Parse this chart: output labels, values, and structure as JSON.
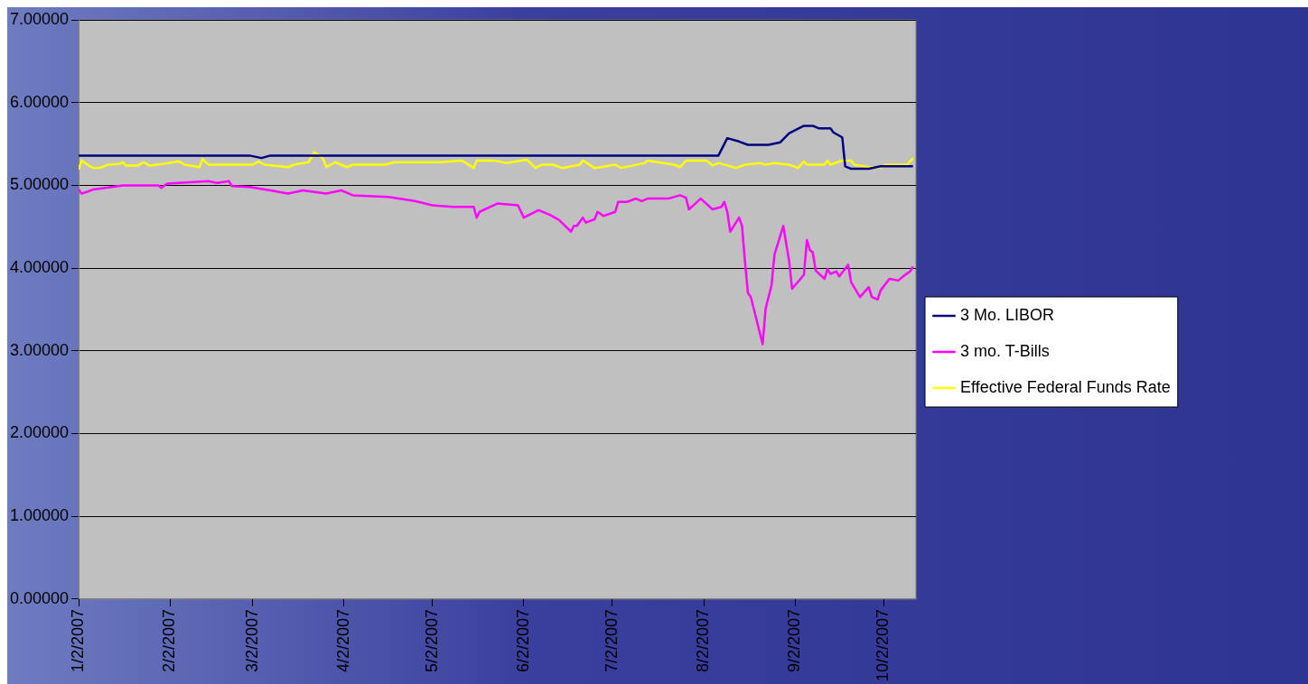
{
  "chart_data": {
    "type": "line",
    "xlim": [
      "2007-01-02",
      "2007-10-13"
    ],
    "xticks": [
      {
        "value": "2007-01-02",
        "label": "1/2/2007"
      },
      {
        "value": "2007-02-02",
        "label": "2/2/2007"
      },
      {
        "value": "2007-03-02",
        "label": "3/2/2007"
      },
      {
        "value": "2007-04-02",
        "label": "4/2/2007"
      },
      {
        "value": "2007-05-02",
        "label": "5/2/2007"
      },
      {
        "value": "2007-06-02",
        "label": "6/2/2007"
      },
      {
        "value": "2007-07-02",
        "label": "7/2/2007"
      },
      {
        "value": "2007-08-02",
        "label": "8/2/2007"
      },
      {
        "value": "2007-09-02",
        "label": "9/2/2007"
      },
      {
        "value": "2007-10-02",
        "label": "10/2/2007"
      }
    ],
    "ylim": [
      0,
      7
    ],
    "yticks": [
      {
        "value": 0,
        "label": "0.00000"
      },
      {
        "value": 1,
        "label": "1.00000"
      },
      {
        "value": 2,
        "label": "2.00000"
      },
      {
        "value": 3,
        "label": "3.00000"
      },
      {
        "value": 4,
        "label": "4.00000"
      },
      {
        "value": 5,
        "label": "5.00000"
      },
      {
        "value": 6,
        "label": "6.00000"
      },
      {
        "value": 7,
        "label": "7.00000"
      }
    ],
    "grid": "y",
    "legend": "right",
    "marker": "none",
    "line_style": "solid",
    "series": [
      {
        "name": "3 Mo. LIBOR",
        "color": "#000080",
        "x": [
          "2007-01-02",
          "2007-03-01",
          "2007-03-05",
          "2007-03-08",
          "2007-08-07",
          "2007-08-10",
          "2007-08-14",
          "2007-08-17",
          "2007-08-24",
          "2007-08-28",
          "2007-08-31",
          "2007-09-05",
          "2007-09-08",
          "2007-09-10",
          "2007-09-14",
          "2007-09-15",
          "2007-09-18",
          "2007-09-19",
          "2007-09-21",
          "2007-09-27",
          "2007-10-01",
          "2007-10-12"
        ],
        "values": [
          5.36,
          5.36,
          5.33,
          5.36,
          5.36,
          5.57,
          5.53,
          5.49,
          5.49,
          5.52,
          5.63,
          5.72,
          5.72,
          5.69,
          5.69,
          5.64,
          5.58,
          5.23,
          5.2,
          5.2,
          5.23,
          5.23
        ]
      },
      {
        "name": "3 mo. T-Bills",
        "color": "#ff00ff",
        "x": [
          "2007-01-02",
          "2007-01-03",
          "2007-01-07",
          "2007-01-11",
          "2007-01-17",
          "2007-01-29",
          "2007-01-30",
          "2007-02-01",
          "2007-02-15",
          "2007-02-18",
          "2007-02-22",
          "2007-02-23",
          "2007-03-01",
          "2007-03-08",
          "2007-03-14",
          "2007-03-19",
          "2007-03-27",
          "2007-04-01",
          "2007-04-05",
          "2007-04-17",
          "2007-04-26",
          "2007-05-02",
          "2007-05-09",
          "2007-05-16",
          "2007-05-17",
          "2007-05-18",
          "2007-05-24",
          "2007-05-31",
          "2007-06-02",
          "2007-06-07",
          "2007-06-11",
          "2007-06-14",
          "2007-06-18",
          "2007-06-19",
          "2007-06-20",
          "2007-06-22",
          "2007-06-23",
          "2007-06-26",
          "2007-06-27",
          "2007-06-29",
          "2007-07-03",
          "2007-07-04",
          "2007-07-07",
          "2007-07-10",
          "2007-07-12",
          "2007-07-14",
          "2007-07-21",
          "2007-07-25",
          "2007-07-27",
          "2007-07-28",
          "2007-08-01",
          "2007-08-05",
          "2007-08-08",
          "2007-08-09",
          "2007-08-10",
          "2007-08-11",
          "2007-08-14",
          "2007-08-15",
          "2007-08-16",
          "2007-08-17",
          "2007-08-18",
          "2007-08-22",
          "2007-08-23",
          "2007-08-25",
          "2007-08-26",
          "2007-08-29",
          "2007-08-31",
          "2007-09-01",
          "2007-09-05",
          "2007-09-06",
          "2007-09-07",
          "2007-09-08",
          "2007-09-09",
          "2007-09-12",
          "2007-09-13",
          "2007-09-14",
          "2007-09-16",
          "2007-09-17",
          "2007-09-20",
          "2007-09-21",
          "2007-09-24",
          "2007-09-27",
          "2007-09-28",
          "2007-09-30",
          "2007-10-01",
          "2007-10-04",
          "2007-10-07",
          "2007-10-09",
          "2007-10-11",
          "2007-10-12"
        ],
        "values": [
          4.95,
          4.9,
          4.95,
          4.97,
          5.0,
          5.0,
          4.97,
          5.02,
          5.05,
          5.03,
          5.05,
          4.99,
          4.98,
          4.94,
          4.9,
          4.94,
          4.9,
          4.94,
          4.88,
          4.86,
          4.81,
          4.76,
          4.74,
          4.74,
          4.61,
          4.68,
          4.78,
          4.76,
          4.61,
          4.7,
          4.64,
          4.58,
          4.44,
          4.51,
          4.51,
          4.61,
          4.55,
          4.59,
          4.68,
          4.63,
          4.68,
          4.8,
          4.8,
          4.84,
          4.81,
          4.84,
          4.84,
          4.88,
          4.85,
          4.71,
          4.84,
          4.71,
          4.74,
          4.8,
          4.68,
          4.44,
          4.61,
          4.51,
          4.08,
          3.7,
          3.65,
          3.08,
          3.51,
          3.79,
          4.16,
          4.51,
          4.08,
          3.75,
          3.92,
          4.34,
          4.22,
          4.19,
          3.97,
          3.87,
          3.99,
          3.93,
          3.96,
          3.9,
          4.04,
          3.83,
          3.65,
          3.77,
          3.65,
          3.62,
          3.73,
          3.87,
          3.85,
          3.91,
          3.96,
          4.02
        ]
      },
      {
        "name": "Effective Federal Funds Rate",
        "color": "#ffff00",
        "x": [
          "2007-01-02",
          "2007-01-03",
          "2007-01-05",
          "2007-01-07",
          "2007-01-09",
          "2007-01-12",
          "2007-01-16",
          "2007-01-17",
          "2007-01-18",
          "2007-01-22",
          "2007-01-24",
          "2007-01-26",
          "2007-01-31",
          "2007-02-05",
          "2007-02-07",
          "2007-02-12",
          "2007-02-13",
          "2007-02-15",
          "2007-03-02",
          "2007-03-04",
          "2007-03-06",
          "2007-03-14",
          "2007-03-16",
          "2007-03-21",
          "2007-03-23",
          "2007-03-26",
          "2007-03-27",
          "2007-03-30",
          "2007-04-03",
          "2007-04-05",
          "2007-04-16",
          "2007-04-19",
          "2007-05-05",
          "2007-05-12",
          "2007-05-16",
          "2007-05-17",
          "2007-05-23",
          "2007-05-27",
          "2007-06-03",
          "2007-06-06",
          "2007-06-08",
          "2007-06-12",
          "2007-06-15",
          "2007-06-21",
          "2007-06-22",
          "2007-06-26",
          "2007-07-03",
          "2007-07-05",
          "2007-07-13",
          "2007-07-14",
          "2007-07-23",
          "2007-07-25",
          "2007-07-27",
          "2007-08-03",
          "2007-08-05",
          "2007-08-07",
          "2007-08-10",
          "2007-08-13",
          "2007-08-16",
          "2007-08-21",
          "2007-08-23",
          "2007-08-26",
          "2007-08-31",
          "2007-09-03",
          "2007-09-05",
          "2007-09-06",
          "2007-09-12",
          "2007-09-13",
          "2007-09-14",
          "2007-09-18",
          "2007-09-21",
          "2007-09-22",
          "2007-09-27",
          "2007-10-01",
          "2007-10-03",
          "2007-10-10",
          "2007-10-12"
        ],
        "values": [
          5.19,
          5.3,
          5.25,
          5.21,
          5.21,
          5.25,
          5.26,
          5.28,
          5.24,
          5.24,
          5.28,
          5.24,
          5.26,
          5.29,
          5.25,
          5.22,
          5.32,
          5.25,
          5.25,
          5.29,
          5.25,
          5.22,
          5.25,
          5.28,
          5.4,
          5.32,
          5.22,
          5.28,
          5.22,
          5.25,
          5.25,
          5.28,
          5.28,
          5.3,
          5.21,
          5.3,
          5.3,
          5.27,
          5.31,
          5.21,
          5.25,
          5.25,
          5.21,
          5.25,
          5.3,
          5.21,
          5.25,
          5.21,
          5.27,
          5.3,
          5.25,
          5.22,
          5.3,
          5.3,
          5.24,
          5.27,
          5.24,
          5.21,
          5.25,
          5.27,
          5.25,
          5.27,
          5.25,
          5.21,
          5.29,
          5.25,
          5.25,
          5.3,
          5.25,
          5.3,
          5.3,
          5.25,
          5.22,
          5.22,
          5.25,
          5.25,
          5.33
        ]
      }
    ]
  }
}
